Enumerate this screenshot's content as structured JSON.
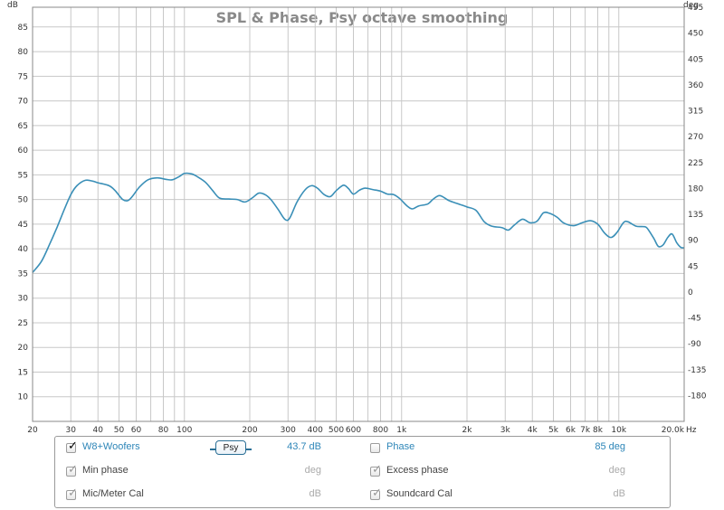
{
  "chart_data": {
    "type": "line",
    "title": "SPL & Phase, Psy octave smoothing",
    "left_axis_unit": "dB",
    "right_axis_unit": "deg",
    "x_axis_unit": "Hz",
    "x_scale": "log",
    "xlim": [
      20,
      20000
    ],
    "ylim": [
      5,
      89
    ],
    "y_right_lim": [
      -225,
      495
    ],
    "grid": true,
    "y_ticks": [
      10,
      15,
      20,
      25,
      30,
      35,
      40,
      45,
      50,
      55,
      60,
      65,
      70,
      75,
      80,
      85
    ],
    "y_right_ticks": [
      -180,
      -135,
      -90,
      -45,
      0,
      45,
      90,
      135,
      180,
      225,
      270,
      315,
      360,
      405,
      450,
      495
    ],
    "x_tick_labels": [
      {
        "value": 20,
        "label": "20"
      },
      {
        "value": 30,
        "label": "30"
      },
      {
        "value": 40,
        "label": "40"
      },
      {
        "value": 50,
        "label": "50"
      },
      {
        "value": 60,
        "label": "60"
      },
      {
        "value": 80,
        "label": "80"
      },
      {
        "value": 100,
        "label": "100"
      },
      {
        "value": 200,
        "label": "200"
      },
      {
        "value": 300,
        "label": "300"
      },
      {
        "value": 400,
        "label": "400"
      },
      {
        "value": 500,
        "label": "500"
      },
      {
        "value": 600,
        "label": "600"
      },
      {
        "value": 800,
        "label": "800"
      },
      {
        "value": 1000,
        "label": "1k"
      },
      {
        "value": 2000,
        "label": "2k"
      },
      {
        "value": 3000,
        "label": "3k"
      },
      {
        "value": 4000,
        "label": "4k"
      },
      {
        "value": 5000,
        "label": "5k"
      },
      {
        "value": 6000,
        "label": "6k"
      },
      {
        "value": 7000,
        "label": "7k"
      },
      {
        "value": 8000,
        "label": "8k"
      },
      {
        "value": 10000,
        "label": "10k"
      },
      {
        "value": 20000,
        "label": "20.0k"
      }
    ],
    "series": [
      {
        "name": "W8+Woofers",
        "color": "#3a8fb7",
        "points": [
          [
            20,
            35.2
          ],
          [
            22,
            37.5
          ],
          [
            24,
            41.0
          ],
          [
            26,
            44.5
          ],
          [
            28,
            48.0
          ],
          [
            30,
            51.0
          ],
          [
            32,
            52.8
          ],
          [
            35,
            53.9
          ],
          [
            38,
            53.7
          ],
          [
            40,
            53.4
          ],
          [
            45,
            52.8
          ],
          [
            48,
            51.8
          ],
          [
            52,
            50.0
          ],
          [
            55,
            49.8
          ],
          [
            58,
            50.8
          ],
          [
            62,
            52.5
          ],
          [
            68,
            54.0
          ],
          [
            75,
            54.4
          ],
          [
            82,
            54.1
          ],
          [
            88,
            54.0
          ],
          [
            95,
            54.7
          ],
          [
            100,
            55.3
          ],
          [
            108,
            55.2
          ],
          [
            115,
            54.6
          ],
          [
            125,
            53.5
          ],
          [
            135,
            51.8
          ],
          [
            145,
            50.3
          ],
          [
            160,
            50.1
          ],
          [
            175,
            50.0
          ],
          [
            190,
            49.5
          ],
          [
            205,
            50.3
          ],
          [
            220,
            51.3
          ],
          [
            235,
            51.0
          ],
          [
            250,
            50.0
          ],
          [
            270,
            48.0
          ],
          [
            290,
            46.0
          ],
          [
            305,
            46.2
          ],
          [
            330,
            49.5
          ],
          [
            360,
            52.0
          ],
          [
            385,
            52.8
          ],
          [
            410,
            52.3
          ],
          [
            440,
            51.0
          ],
          [
            470,
            50.6
          ],
          [
            500,
            51.8
          ],
          [
            540,
            52.9
          ],
          [
            570,
            52.2
          ],
          [
            600,
            51.1
          ],
          [
            640,
            51.9
          ],
          [
            680,
            52.3
          ],
          [
            740,
            52.0
          ],
          [
            800,
            51.7
          ],
          [
            860,
            51.1
          ],
          [
            920,
            51.0
          ],
          [
            980,
            50.2
          ],
          [
            1060,
            48.7
          ],
          [
            1120,
            48.1
          ],
          [
            1200,
            48.7
          ],
          [
            1320,
            49.1
          ],
          [
            1400,
            50.1
          ],
          [
            1500,
            50.8
          ],
          [
            1650,
            49.8
          ],
          [
            1800,
            49.2
          ],
          [
            2000,
            48.5
          ],
          [
            2200,
            47.8
          ],
          [
            2400,
            45.5
          ],
          [
            2600,
            44.6
          ],
          [
            2900,
            44.3
          ],
          [
            3100,
            43.8
          ],
          [
            3300,
            44.8
          ],
          [
            3600,
            46.0
          ],
          [
            3900,
            45.3
          ],
          [
            4200,
            45.6
          ],
          [
            4500,
            47.3
          ],
          [
            4800,
            47.2
          ],
          [
            5200,
            46.4
          ],
          [
            5600,
            45.2
          ],
          [
            6200,
            44.7
          ],
          [
            6800,
            45.3
          ],
          [
            7400,
            45.7
          ],
          [
            8000,
            45.0
          ],
          [
            8600,
            43.2
          ],
          [
            9200,
            42.3
          ],
          [
            9800,
            43.3
          ],
          [
            10500,
            45.3
          ],
          [
            11000,
            45.5
          ],
          [
            12000,
            44.6
          ],
          [
            13000,
            44.5
          ],
          [
            13500,
            44.2
          ],
          [
            14500,
            42.1
          ],
          [
            15200,
            40.5
          ],
          [
            16000,
            40.8
          ],
          [
            16800,
            42.3
          ],
          [
            17600,
            43.0
          ],
          [
            18500,
            41.2
          ],
          [
            19300,
            40.3
          ],
          [
            20000,
            40.2
          ]
        ]
      }
    ]
  },
  "legend": {
    "row1": {
      "name": "W8+Woofers",
      "smoothing_button": "Psy",
      "value": "43.7 dB",
      "phase_label": "Phase",
      "phase_value": "85 deg",
      "checked": true,
      "phase_checked": false
    },
    "row2": {
      "left_label": "Min phase",
      "left_unit": "deg",
      "right_label": "Excess phase",
      "right_unit": "deg"
    },
    "row3": {
      "left_label": "Mic/Meter Cal",
      "left_unit": "dB",
      "right_label": "Soundcard Cal",
      "right_unit": "dB"
    },
    "checkmark": "✓"
  },
  "colors": {
    "trace": "#3a8fb7",
    "accent_blue": "#2e86b8",
    "grid": "#c8c8c8",
    "plot_border": "#888888"
  }
}
